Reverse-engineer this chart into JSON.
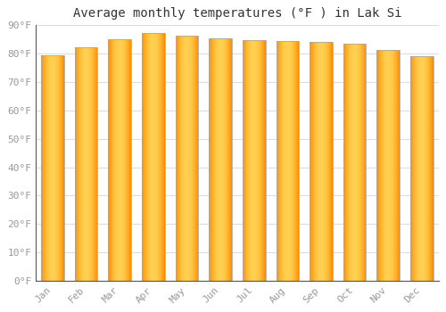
{
  "title": "Average monthly temperatures (°F ) in Lak Si",
  "months": [
    "Jan",
    "Feb",
    "Mar",
    "Apr",
    "May",
    "Jun",
    "Jul",
    "Aug",
    "Sep",
    "Oct",
    "Nov",
    "Dec"
  ],
  "values": [
    79.2,
    82.2,
    85.0,
    87.0,
    86.0,
    85.2,
    84.7,
    84.2,
    84.0,
    83.2,
    81.2,
    79.0
  ],
  "bar_color_center": "#FFB700",
  "bar_color_edge": "#FF8C00",
  "bar_color_light": "#FFD966",
  "background_color": "#FFFFFF",
  "plot_bg_color": "#FFFFFF",
  "grid_color": "#DDDDDD",
  "text_color": "#999999",
  "title_color": "#333333",
  "border_color": "#AAAAAA",
  "ylim": [
    0,
    90
  ],
  "yticks": [
    0,
    10,
    20,
    30,
    40,
    50,
    60,
    70,
    80,
    90
  ],
  "ytick_labels": [
    "0°F",
    "10°F",
    "20°F",
    "30°F",
    "40°F",
    "50°F",
    "60°F",
    "70°F",
    "80°F",
    "90°F"
  ],
  "title_fontsize": 10,
  "tick_fontsize": 8
}
